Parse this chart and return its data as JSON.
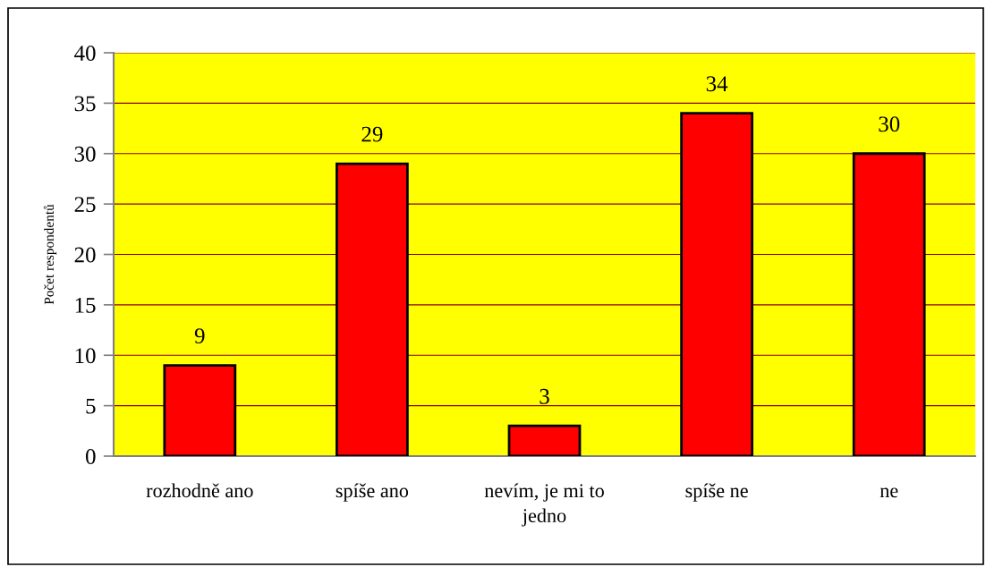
{
  "chart_data": {
    "type": "bar",
    "categories": [
      "rozhodně ano",
      "spíše ano",
      "nevím, je mi to\njedno",
      "spíše ne",
      "ne"
    ],
    "values": [
      9,
      29,
      3,
      34,
      30
    ],
    "color": "#ff0000",
    "ylabel": "Počet respondentů",
    "ylim": [
      0,
      40
    ],
    "yticks": [
      0,
      5,
      10,
      15,
      20,
      25,
      30,
      35,
      40
    ],
    "grid": "y",
    "data_labels": true,
    "legend": false
  }
}
